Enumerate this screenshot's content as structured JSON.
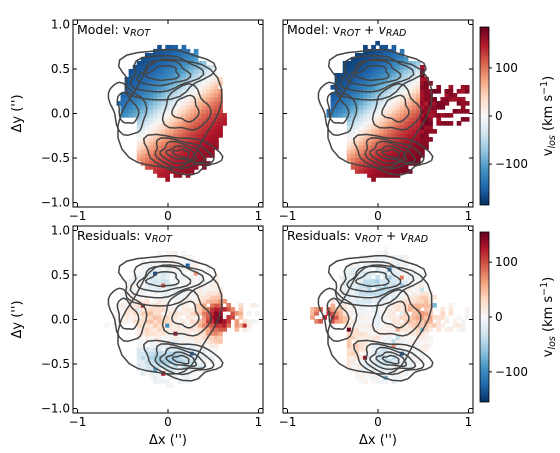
{
  "chart_data": [
    {
      "type": "heatmap",
      "panel": "top-left",
      "title": "Model: v",
      "title_sub": "ROT",
      "ylabel": "Δy ('')",
      "xlabel": "",
      "xlim": [
        -1.05,
        1.05
      ],
      "ylim": [
        -1.05,
        1.05
      ],
      "xticks": [
        -1,
        0,
        1
      ],
      "yticks": [
        -1.0,
        -0.5,
        0.0,
        0.5,
        1.0
      ],
      "xtick_labels": [
        "−1",
        "0",
        "1"
      ],
      "ytick_labels": [
        "−1.0",
        "−0.5",
        "0.0",
        "0.5",
        "1.0"
      ],
      "velocity_model": {
        "gradient_axis_deg": -130,
        "amplitude": 175,
        "outer_extension": "none"
      },
      "contours": true
    },
    {
      "type": "heatmap",
      "panel": "top-right",
      "title": "Model: v",
      "title_sub": "ROT",
      "title_mid": " + v",
      "title_sub2": "RAD",
      "xlabel": "",
      "xlim": [
        -1.05,
        1.05
      ],
      "ylim": [
        -1.05,
        1.05
      ],
      "xticks": [
        -1,
        0,
        1
      ],
      "yticks": [
        -1.0,
        -0.5,
        0.0,
        0.5,
        1.0
      ],
      "xtick_labels": [
        "−1",
        "0",
        "1"
      ],
      "velocity_model": {
        "gradient_axis_deg": -130,
        "amplitude": 185,
        "outer_extension": "east"
      },
      "contours": true
    },
    {
      "type": "heatmap",
      "panel": "bottom-left",
      "title": "Residuals: v",
      "title_sub": "ROT",
      "ylabel": "Δy ('')",
      "xlabel": "Δx ('')",
      "xlim": [
        -1.05,
        1.05
      ],
      "ylim": [
        -1.05,
        1.05
      ],
      "xticks": [
        -1,
        0,
        1
      ],
      "yticks": [
        -1.0,
        -0.5,
        0.0,
        0.5,
        1.0
      ],
      "xtick_labels": [
        "−1",
        "0",
        "1"
      ],
      "ytick_labels": [
        "−1.0",
        "−0.5",
        "0.0",
        "0.5",
        "1.0"
      ],
      "residual_features": {
        "strong_positive_region": "east",
        "negative_region": "south"
      },
      "contours": true
    },
    {
      "type": "heatmap",
      "panel": "bottom-right",
      "title": "Residuals: v",
      "title_sub": "ROT",
      "title_mid": " + v",
      "title_sub2": "RAD",
      "xlabel": "Δx ('')",
      "xlim": [
        -1.05,
        1.05
      ],
      "ylim": [
        -1.05,
        1.05
      ],
      "xticks": [
        -1,
        0,
        1
      ],
      "yticks": [
        -1.0,
        -0.5,
        0.0,
        0.5,
        1.0
      ],
      "xtick_labels": [
        "−1",
        "0",
        "1"
      ],
      "residual_features": {
        "strong_positive_region": "west",
        "negative_region": "north"
      },
      "contours": true
    }
  ],
  "colorbars": [
    {
      "label": "v",
      "label_sub": "los",
      "label_unit": " (km s",
      "label_sup": "−1",
      "label_end": ")",
      "range": [
        -185,
        185
      ],
      "ticks": [
        -100,
        0,
        100
      ],
      "tick_labels": [
        "−100",
        "0",
        "100"
      ],
      "colormap": "RdBu_r"
    },
    {
      "label": "v",
      "label_sub": "los",
      "label_unit": " (km s",
      "label_sup": "−1",
      "label_end": ")",
      "range": [
        -155,
        155
      ],
      "ticks": [
        -100,
        0,
        100
      ],
      "tick_labels": [
        "−100",
        "0",
        "100"
      ],
      "colormap": "RdBu_r"
    }
  ],
  "colors": {
    "negative_extreme": "#053061",
    "negative": "#2166ac",
    "negative_mid": "#4393c3",
    "negative_light": "#92c5de",
    "negative_faint": "#d1e5f0",
    "neutral": "#f7f7f7",
    "positive_faint": "#fddbc7",
    "positive_light": "#f4a582",
    "positive_mid": "#d6604d",
    "positive": "#b2182b",
    "positive_extreme": "#67001f",
    "contour": "#444444"
  }
}
